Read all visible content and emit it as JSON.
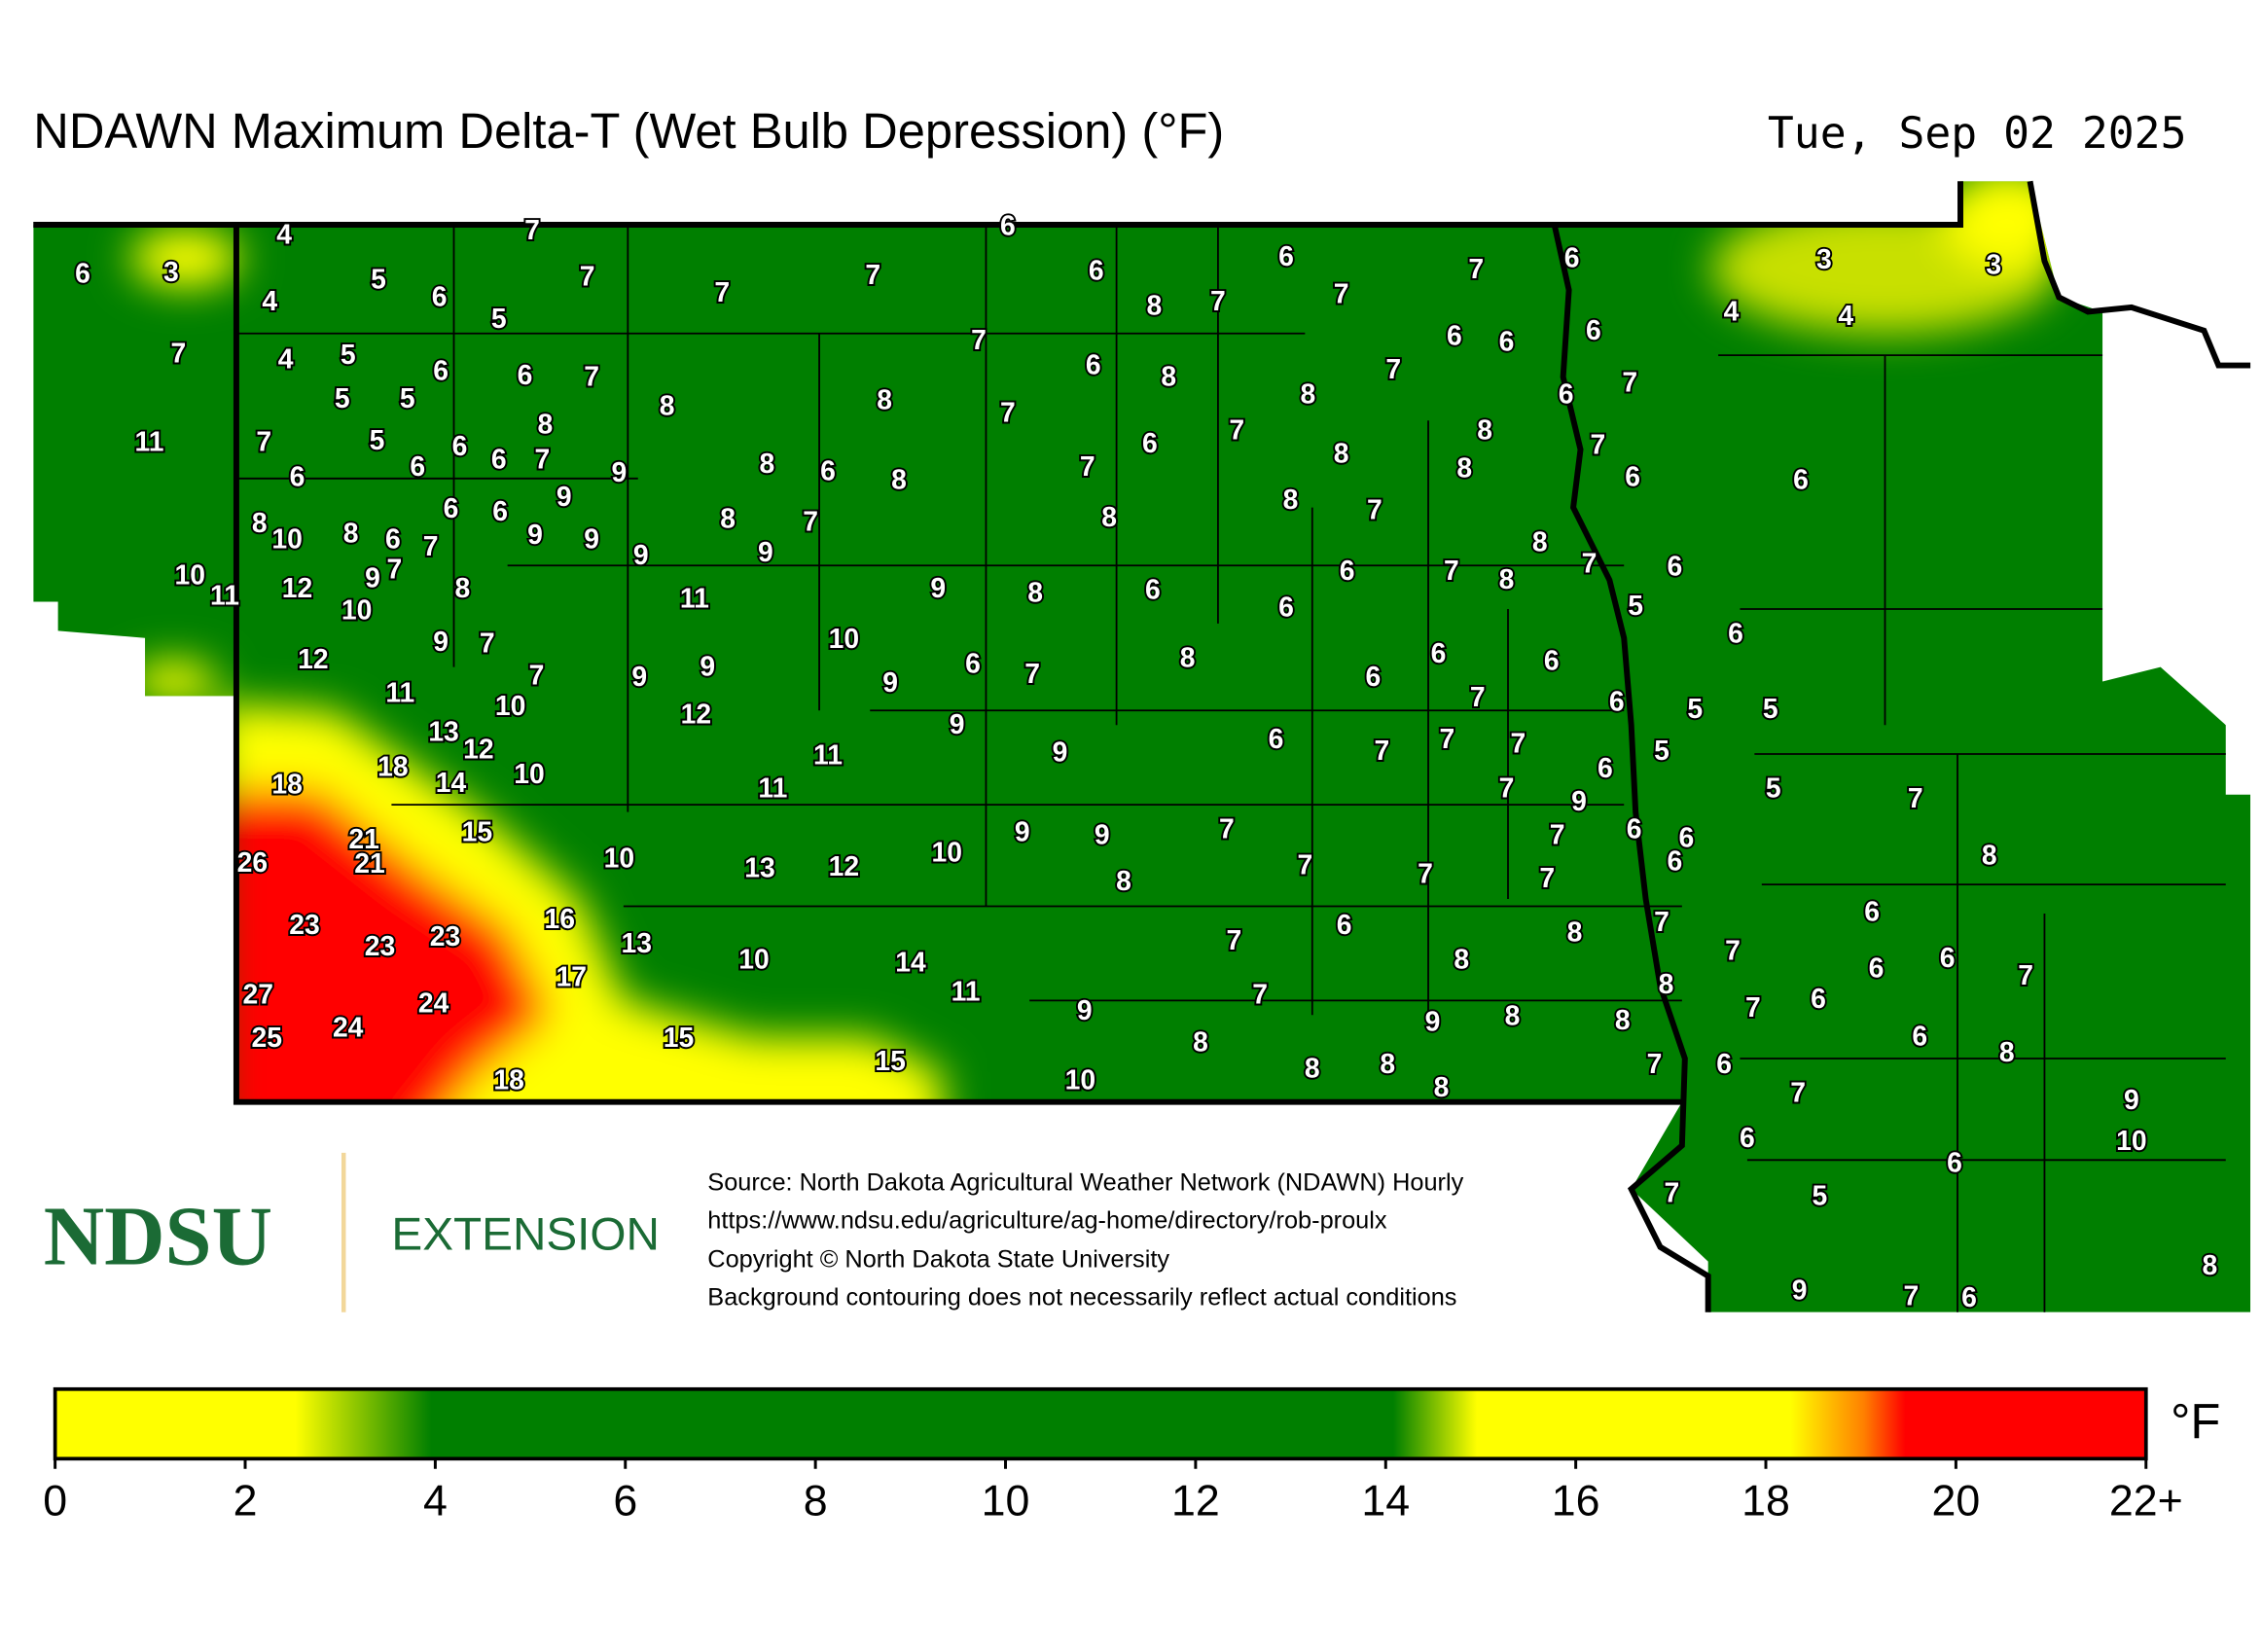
{
  "header": {
    "title": "NDAWN Maximum Delta-T (Wet Bulb Depression) (°F)",
    "date": "Tue, Sep 02 2025"
  },
  "stations": {
    "values": [
      4,
      7,
      6,
      6,
      3,
      5,
      7,
      7,
      6,
      6,
      7,
      7,
      6,
      3,
      3,
      4,
      6,
      5,
      7,
      8,
      7,
      4,
      4,
      7,
      4,
      5,
      6,
      6,
      7,
      7,
      6,
      8,
      6,
      6,
      6,
      7,
      6,
      7,
      5,
      5,
      8,
      8,
      7,
      8,
      11,
      7,
      5,
      6,
      8,
      6,
      7,
      9,
      8,
      6,
      8,
      6,
      7,
      8,
      7,
      6,
      6,
      7,
      8,
      8,
      6,
      6,
      8,
      10,
      8,
      6,
      7,
      6,
      6,
      9,
      9,
      9,
      9,
      8,
      7,
      9,
      8,
      8,
      7,
      8,
      10,
      11,
      12,
      9,
      7,
      10,
      8,
      11,
      9,
      8,
      6,
      6,
      7,
      8,
      7,
      6,
      6,
      5,
      12,
      9,
      7,
      7,
      10,
      9,
      9,
      9,
      6,
      7,
      8,
      6,
      6,
      6,
      6,
      11,
      10,
      12,
      9,
      7,
      6,
      5,
      5,
      13,
      12,
      10,
      11,
      9,
      6,
      7,
      7,
      7,
      6,
      5,
      18,
      18,
      14,
      11,
      7,
      9,
      5,
      7,
      15,
      21,
      21,
      26,
      10,
      13,
      12,
      10,
      9,
      9,
      7,
      8,
      7,
      7,
      7,
      6,
      6,
      6,
      7,
      8,
      23,
      23,
      23,
      16,
      13,
      10,
      14,
      7,
      6,
      8,
      8,
      7,
      7,
      6,
      6,
      6,
      7,
      17,
      27,
      24,
      11,
      7,
      8,
      7,
      6,
      25,
      24,
      15,
      9,
      9,
      8,
      8,
      6,
      8,
      15,
      8,
      8,
      8,
      7,
      6,
      7,
      9,
      18,
      10,
      8,
      10,
      6,
      6,
      7,
      5,
      8,
      9,
      7,
      6
    ]
  },
  "colorbar": {
    "range": [
      0,
      22
    ],
    "ticks": [
      0,
      2,
      4,
      6,
      8,
      10,
      12,
      14,
      16,
      18,
      20,
      {
        "value": 22,
        "label": "22+"
      }
    ],
    "unit": "°F"
  },
  "logo": {
    "name": "NDSU",
    "unit": "EXTENSION"
  },
  "footer": {
    "lines": [
      "Source: North Dakota Agricultural Weather Network (NDAWN) Hourly",
      "https://www.ndsu.edu/agriculture/ag-home/directory/rob-proulx",
      "Copyright © North Dakota State University",
      "Background contouring does not necessarily reflect actual conditions"
    ]
  }
}
